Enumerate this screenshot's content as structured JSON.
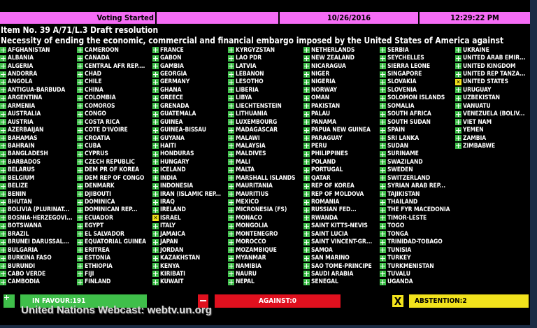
{
  "header": {
    "status": "Voting Started",
    "date": "10/26/2016",
    "time": "12:29:22 PM"
  },
  "item": {
    "title": "Item No. 39 A/71/L.3 Draft resolution",
    "subtitle": "Necessity of ending the economic, commercial and financial embargo imposed by the United States of America against"
  },
  "colors": {
    "yes": "#3fbf4a",
    "no": "#e0101e",
    "abstain": "#f2e21c",
    "header": "#f56cf5"
  },
  "columns": [
    [
      "AFGHANISTAN",
      "ALBANIA",
      "ALGERIA",
      "ANDORRA",
      "ANGOLA",
      "ANTIGUA-BARBUDA",
      "ARGENTINA",
      "ARMENIA",
      "AUSTRALIA",
      "AUSTRIA",
      "AZERBAIJAN",
      "BAHAMAS",
      "BAHRAIN",
      "BANGLADESH",
      "BARBADOS",
      "BELARUS",
      "BELGIUM",
      "BELIZE",
      "BENIN",
      "BHUTAN",
      "BOLIVIA  (PLURINAT...",
      "BOSNIA-HERZEGOVI...",
      "BOTSWANA",
      "BRAZIL",
      "BRUNEI DARUSSAL...",
      "BULGARIA",
      "BURKINA FASO",
      "BURUNDI",
      "CABO VERDE",
      "CAMBODIA"
    ],
    [
      "CAMEROON",
      "CANADA",
      "CENTRAL AFR REP....",
      "CHAD",
      "CHILE",
      "CHINA",
      "COLOMBIA",
      "COMOROS",
      "CONGO",
      "COSTA RICA",
      "COTE D'IVOIRE",
      "CROATIA",
      "CUBA",
      "CYPRUS",
      "CZECH REPUBLIC",
      "DEM PR OF KOREA",
      "DEM REP OF CONGO",
      "DENMARK",
      "DJIBOUTI",
      "DOMINICA",
      "DOMINICAN REP...",
      "ECUADOR",
      "EGYPT",
      "EL SALVADOR",
      "EQUATORIAL GUINEA",
      "ERITREA",
      "ESTONIA",
      "ETHIOPIA",
      "FIJI",
      "FINLAND"
    ],
    [
      "FRANCE",
      "GABON",
      "GAMBIA",
      "GEORGIA",
      "GERMANY",
      "GHANA",
      "GREECE",
      "GRENADA",
      "GUATEMALA",
      "GUINEA",
      "GUINEA-BISSAU",
      "GUYANA",
      "HAITI",
      "HONDURAS",
      "HUNGARY",
      "ICELAND",
      "INDIA",
      "INDONESIA",
      "IRAN (ISLAMIC REP...",
      "IRAQ",
      "IRELAND",
      "ISRAEL",
      "ITALY",
      "JAMAICA",
      "JAPAN",
      "JORDAN",
      "KAZAKHSTAN",
      "KENYA",
      "KIRIBATI",
      "KUWAIT"
    ],
    [
      "KYRGYZSTAN",
      "LAO PDR",
      "LATVIA",
      "LEBANON",
      "LESOTHO",
      "LIBERIA",
      "LIBYA",
      "LIECHTENSTEIN",
      "LITHUANIA",
      "LUXEMBOURG",
      "MADAGASCAR",
      "MALAWI",
      "MALAYSIA",
      "MALDIVES",
      "MALI",
      "MALTA",
      "MARSHALL ISLANDS",
      "MAURITANIA",
      "MAURITIUS",
      "MEXICO",
      "MICRONESIA (FS)",
      "MONACO",
      "MONGOLIA",
      "MONTENEGRO",
      "MOROCCO",
      "MOZAMBIQUE",
      "MYANMAR",
      "NAMIBIA",
      "NAURU",
      "NEPAL"
    ],
    [
      "NETHERLANDS",
      "NEW ZEALAND",
      "NICARAGUA",
      "NIGER",
      "NIGERIA",
      "NORWAY",
      "OMAN",
      "PAKISTAN",
      "PALAU",
      "PANAMA",
      "PAPUA NEW GUINEA",
      "PARAGUAY",
      "PERU",
      "PHILIPPINES",
      "POLAND",
      "PORTUGAL",
      "QATAR",
      "REP OF KOREA",
      "REP OF MOLDOVA",
      "ROMANIA",
      "RUSSIAN FED...",
      "RWANDA",
      "SAINT KITTS-NEVIS",
      "SAINT LUCIA",
      "SAINT VINCENT-GR...",
      "SAMOA",
      "SAN MARINO",
      "SAO TOME-PRINCIPE",
      "SAUDI ARABIA",
      "SENEGAL"
    ],
    [
      "SERBIA",
      "SEYCHELLES",
      "SIERRA LEONE",
      "SINGAPORE",
      "SLOVAKIA",
      "SLOVENIA",
      "SOLOMON ISLANDS",
      "SOMALIA",
      "SOUTH AFRICA",
      "SOUTH SUDAN",
      "SPAIN",
      "SRI LANKA",
      "SUDAN",
      "SURINAME",
      "SWAZILAND",
      "SWEDEN",
      "SWITZERLAND",
      "SYRIAN ARAB REP...",
      "TAJIKISTAN",
      "THAILAND",
      "THE FYR MACEDONIA",
      "TIMOR-LESTE",
      "TOGO",
      "TONGA",
      "TRINIDAD-TOBAGO",
      "TUNISIA",
      "TURKEY",
      "TURKMENISTAN",
      "TUVALU",
      "UGANDA"
    ],
    [
      "UKRAINE",
      "UNITED ARAB EMIR...",
      "UNITED KINGDOM",
      "UNITED REP TANZA...",
      "UNITED STATES",
      "URUGUAY",
      "UZBEKISTAN",
      "VANUATU",
      "VENEZUELA (BOLIV...",
      "VIET NAM",
      "YEMEN",
      "ZAMBIA",
      "ZIMBABWE"
    ]
  ],
  "abstentions": [
    "ISRAEL",
    "UNITED STATES"
  ],
  "totals": {
    "in_favour": "IN FAVOUR:191",
    "against": "AGAINST:0",
    "abstention": "ABSTENTION:2"
  },
  "footer": {
    "webcast": "United Nations Webcast: webtv.un.org"
  }
}
